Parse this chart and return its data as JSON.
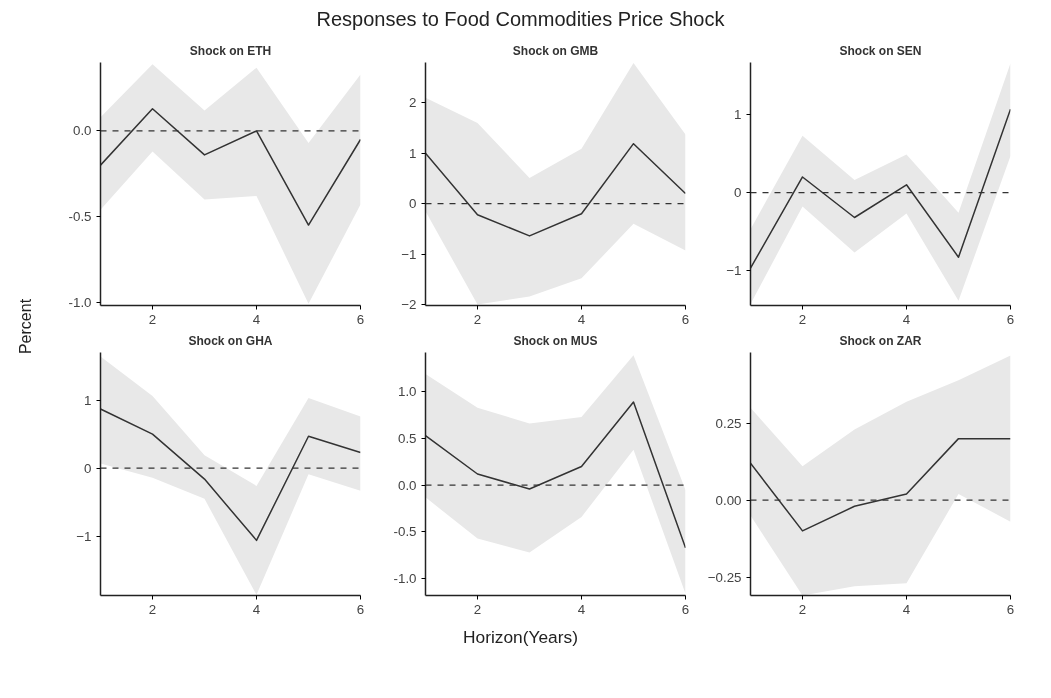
{
  "chart_data": [
    {
      "type": "other",
      "title": "Responses to Food Commodities Price Shock",
      "xlabel": "Horizon(Years)",
      "ylabel": "Percent"
    },
    {
      "type": "line",
      "title": "Shock on ETH",
      "x": [
        1,
        2,
        3,
        4,
        5,
        6
      ],
      "xlim": [
        1,
        6
      ],
      "xticks": [
        2,
        4,
        6
      ],
      "ylim": [
        -1.02,
        0.4
      ],
      "yticks": [
        {
          "value": -1,
          "label": "-1.0"
        },
        {
          "value": -0.5,
          "label": "-0.5"
        },
        {
          "value": 0,
          "label": "0.0"
        }
      ],
      "grid": false,
      "line_style": "solid",
      "ref_lines": [
        {
          "axis": "y",
          "value": 0,
          "color": "#333333",
          "line_style": "dashed"
        }
      ],
      "series": [
        {
          "color": "#333333",
          "values": [
            -0.2,
            0.13,
            -0.14,
            0.0,
            -0.55,
            -0.05
          ],
          "lower": [
            -0.46,
            -0.12,
            -0.4,
            -0.38,
            -1.01,
            -0.43
          ],
          "upper": [
            0.08,
            0.39,
            0.12,
            0.37,
            -0.07,
            0.33
          ]
        }
      ]
    },
    {
      "type": "line",
      "title": "Shock on GMB",
      "x": [
        1,
        2,
        3,
        4,
        5,
        6
      ],
      "xlim": [
        1,
        6
      ],
      "xticks": [
        2,
        4,
        6
      ],
      "ylim": [
        -2.02,
        2.8
      ],
      "yticks": [
        -2,
        -1,
        0,
        1,
        2
      ],
      "grid": false,
      "line_style": "solid",
      "ref_lines": [
        {
          "axis": "y",
          "value": 0,
          "color": "#333333",
          "line_style": "dashed"
        }
      ],
      "series": [
        {
          "color": "#333333",
          "values": [
            1.0,
            -0.22,
            -0.64,
            -0.2,
            1.19,
            0.2
          ],
          "lower": [
            -0.15,
            -2.0,
            -1.84,
            -1.48,
            -0.4,
            -0.93
          ],
          "upper": [
            2.1,
            1.6,
            0.51,
            1.09,
            2.79,
            1.37
          ]
        }
      ]
    },
    {
      "type": "line",
      "title": "Shock on SEN",
      "x": [
        1,
        2,
        3,
        4,
        5,
        6
      ],
      "xlim": [
        1,
        6
      ],
      "xticks": [
        2,
        4,
        6
      ],
      "ylim": [
        -1.45,
        1.67
      ],
      "yticks": [
        -1,
        0,
        1
      ],
      "grid": false,
      "line_style": "solid",
      "ref_lines": [
        {
          "axis": "y",
          "value": 0,
          "color": "#333333",
          "line_style": "dashed"
        }
      ],
      "series": [
        {
          "color": "#333333",
          "values": [
            -0.97,
            0.2,
            -0.32,
            0.1,
            -0.83,
            1.07
          ],
          "lower": [
            -1.43,
            -0.18,
            -0.77,
            -0.27,
            -1.39,
            0.47
          ],
          "upper": [
            -0.47,
            0.73,
            0.16,
            0.49,
            -0.26,
            1.66
          ]
        }
      ]
    },
    {
      "type": "line",
      "title": "Shock on GHA",
      "x": [
        1,
        2,
        3,
        4,
        5,
        6
      ],
      "xlim": [
        1,
        6
      ],
      "xticks": [
        2,
        4,
        6
      ],
      "ylim": [
        -1.87,
        1.7
      ],
      "yticks": [
        -1,
        0,
        1
      ],
      "grid": false,
      "line_style": "solid",
      "ref_lines": [
        {
          "axis": "y",
          "value": 0,
          "color": "#333333",
          "line_style": "dashed"
        }
      ],
      "series": [
        {
          "color": "#333333",
          "values": [
            0.87,
            0.5,
            -0.16,
            -1.06,
            0.47,
            0.23
          ],
          "lower": [
            0.07,
            -0.14,
            -0.45,
            -1.86,
            -0.09,
            -0.33
          ],
          "upper": [
            1.64,
            1.06,
            0.19,
            -0.26,
            1.03,
            0.76
          ]
        }
      ]
    },
    {
      "type": "line",
      "title": "Shock on MUS",
      "x": [
        1,
        2,
        3,
        4,
        5,
        6
      ],
      "xlim": [
        1,
        6
      ],
      "xticks": [
        2,
        4,
        6
      ],
      "ylim": [
        -1.18,
        1.42
      ],
      "yticks": [
        {
          "value": -1,
          "label": "-1.0"
        },
        {
          "value": -0.5,
          "label": "-0.5"
        },
        {
          "value": 0,
          "label": "0.0"
        },
        {
          "value": 0.5,
          "label": "0.5"
        },
        {
          "value": 1,
          "label": "1.0"
        }
      ],
      "grid": false,
      "line_style": "solid",
      "ref_lines": [
        {
          "axis": "y",
          "value": 0,
          "color": "#333333",
          "line_style": "dashed"
        }
      ],
      "series": [
        {
          "color": "#333333",
          "values": [
            0.53,
            0.12,
            -0.04,
            0.2,
            0.89,
            -0.67
          ],
          "lower": [
            -0.13,
            -0.57,
            -0.72,
            -0.34,
            0.38,
            -1.16
          ],
          "upper": [
            1.19,
            0.83,
            0.66,
            0.73,
            1.39,
            -0.05
          ]
        }
      ]
    },
    {
      "type": "line",
      "title": "Shock on ZAR",
      "x": [
        1,
        2,
        3,
        4,
        5,
        6
      ],
      "xlim": [
        1,
        6
      ],
      "xticks": [
        2,
        4,
        6
      ],
      "ylim": [
        -0.31,
        0.48
      ],
      "yticks": [
        -0.25,
        {
          "value": 0,
          "label": "0.00"
        },
        0.25
      ],
      "grid": false,
      "line_style": "solid",
      "ref_lines": [
        {
          "axis": "y",
          "value": 0,
          "color": "#333333",
          "line_style": "dashed"
        }
      ],
      "series": [
        {
          "color": "#333333",
          "values": [
            0.12,
            -0.1,
            -0.02,
            0.02,
            0.2,
            0.2
          ],
          "lower": [
            -0.05,
            -0.31,
            -0.28,
            -0.27,
            0.02,
            -0.07
          ],
          "upper": [
            0.3,
            0.11,
            0.23,
            0.32,
            0.39,
            0.47
          ]
        }
      ]
    }
  ]
}
